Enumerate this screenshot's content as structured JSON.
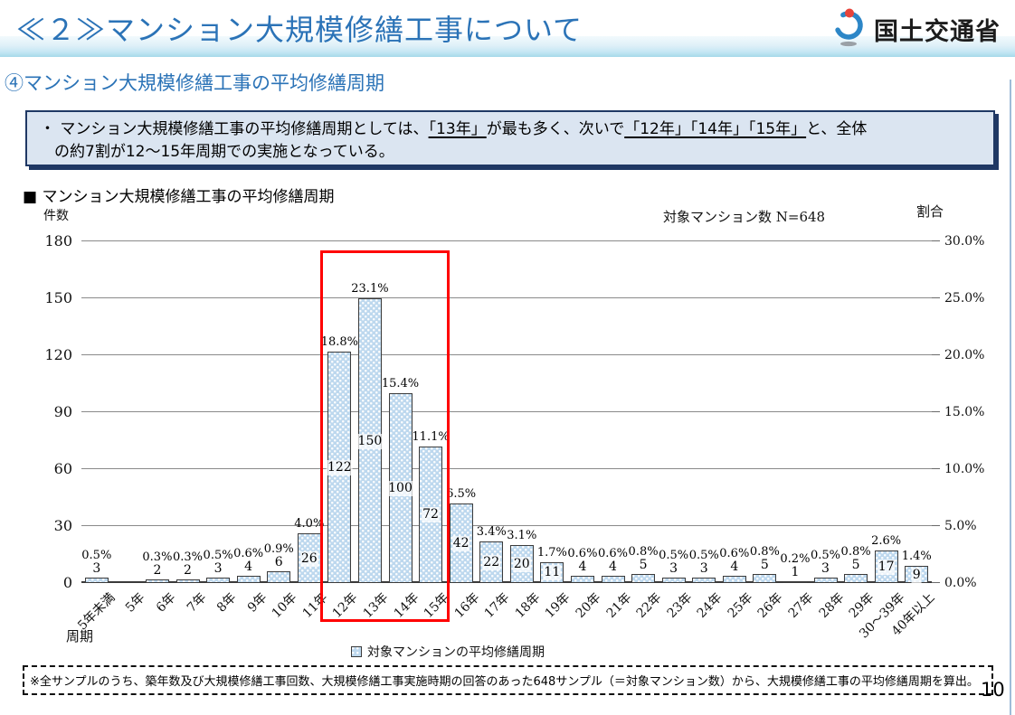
{
  "header": {
    "title": "≪２≫マンション大規模修繕工事について",
    "logo_text": "国土交通省",
    "subtitle": "④マンション大規模修繕工事の平均修繕周期"
  },
  "keybox": {
    "bullet": "・",
    "seg1": "マンション大規模修繕工事の平均修繕周期としては、",
    "seg2": "「13年」",
    "seg3": "が最も多く、次いで",
    "seg4": "「12年」「14年」「15年」",
    "seg5": "と、全体",
    "line2": "の約7割が12～15年周期での実施となっている。"
  },
  "chart": {
    "title": "■ マンション大規模修繕工事の平均修繕周期",
    "left_axis_label": "件数",
    "n_label": "対象マンション数 N=648",
    "right_axis_label": "割合",
    "x_axis_title": "周期",
    "legend_label": "対象マンションの平均修繕周期"
  },
  "chart_data": {
    "type": "bar",
    "title": "マンション大規模修繕工事の平均修繕周期",
    "xlabel": "周期",
    "ylabel_left": "件数",
    "ylabel_right": "割合",
    "n_total": 648,
    "categories": [
      "5年未満",
      "5年",
      "6年",
      "7年",
      "8年",
      "9年",
      "10年",
      "11年",
      "12年",
      "13年",
      "14年",
      "15年",
      "16年",
      "17年",
      "18年",
      "19年",
      "20年",
      "21年",
      "22年",
      "23年",
      "24年",
      "25年",
      "26年",
      "27年",
      "28年",
      "29年",
      "30～39年",
      "40年以上"
    ],
    "values": [
      3,
      0,
      2,
      2,
      3,
      4,
      6,
      26,
      122,
      150,
      100,
      72,
      42,
      22,
      20,
      11,
      4,
      4,
      5,
      3,
      3,
      4,
      5,
      1,
      3,
      5,
      17,
      9
    ],
    "pct_labels": [
      "0.5%",
      "",
      "0.3%",
      "0.3%",
      "0.5%",
      "0.6%",
      "0.9%",
      "4.0%",
      "18.8%",
      "23.1%",
      "15.4%",
      "11.1%",
      "6.5%",
      "3.4%",
      "3.1%",
      "1.7%",
      "0.6%",
      "0.6%",
      "0.8%",
      "0.5%",
      "0.5%",
      "0.6%",
      "0.8%",
      "0.2%",
      "0.5%",
      "0.8%",
      "2.6%",
      "1.4%"
    ],
    "ylim": [
      0,
      180
    ],
    "left_ticks": [
      0,
      30,
      60,
      90,
      120,
      150,
      180
    ],
    "right_ticks": [
      "0.0%",
      "5.0%",
      "10.0%",
      "15.0%",
      "20.0%",
      "25.0%",
      "30.0%"
    ],
    "grid": true,
    "legend": [
      "対象マンションの平均修繕周期"
    ],
    "legend_position": "bottom",
    "bar_color": "#bdd8ee",
    "highlight": {
      "from_index": 8,
      "to_index": 11,
      "box_color": "#ff0000",
      "label_range": "12年～15年"
    }
  },
  "note": {
    "text": "※全サンプルのうち、築年数及び大規模修繕工事回数、大規模修繕工事実施時期の回答のあった648サンプル（＝対象マンション数）から、大規模修繕工事の平均修繕周期を算出。"
  },
  "page_number": "10"
}
